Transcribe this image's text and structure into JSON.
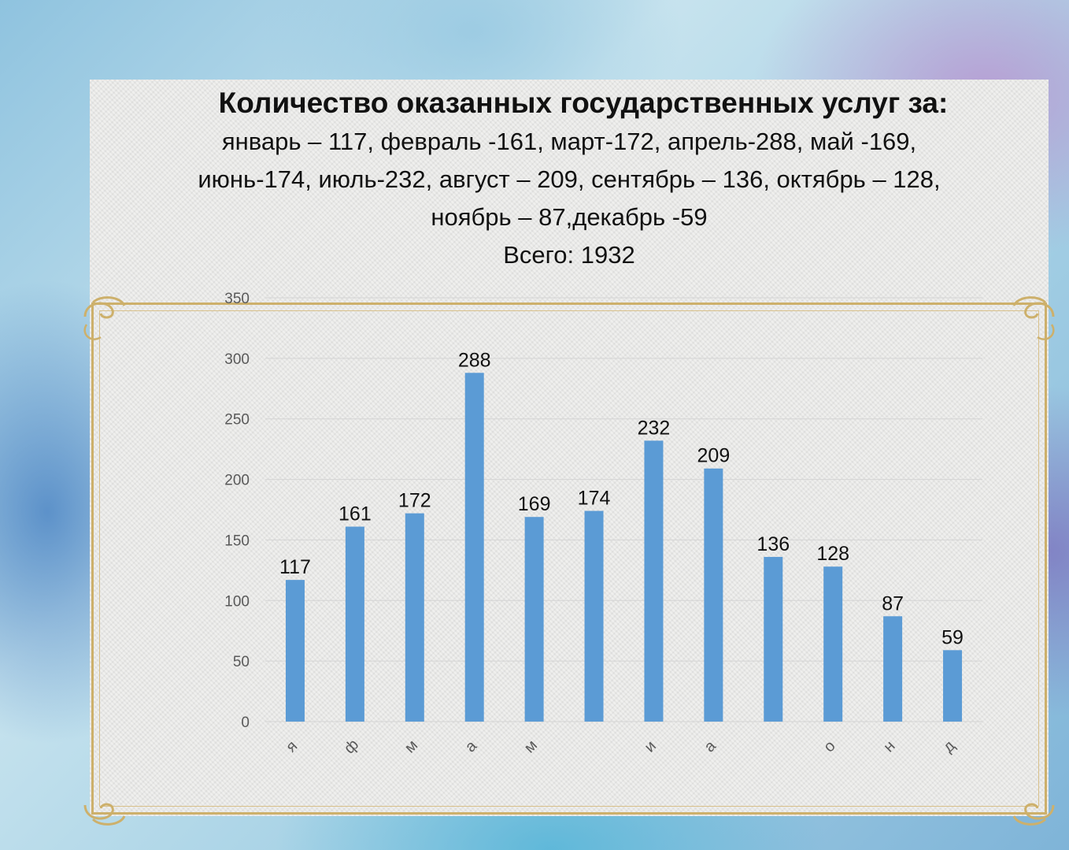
{
  "title": "Количество оказанных государственных услуг за:",
  "subtitle_lines": [
    "январь – 117, февраль -161, март-172, апрель-288, май -169,",
    "июнь-174, июль-232, август – 209, сентябрь – 136, октябрь – 128,",
    "ноябрь – 87,декабрь -59"
  ],
  "total_line": "Всего: 1932",
  "colors": {
    "bar": "#5b9bd5",
    "frame": "#cdb06b",
    "grid": "#d4d4d4"
  },
  "chart_data": {
    "type": "bar",
    "categories": [
      "я",
      "ф",
      "м",
      "а",
      "м",
      "",
      "и",
      "а",
      "",
      "о",
      "н",
      "д"
    ],
    "values": [
      117,
      161,
      172,
      288,
      169,
      174,
      232,
      209,
      136,
      128,
      87,
      59
    ],
    "ylim": [
      0,
      350
    ],
    "yticks": [
      0,
      50,
      100,
      150,
      200,
      250,
      300,
      350
    ],
    "grid": true,
    "data_labels": true,
    "legend": "none"
  }
}
